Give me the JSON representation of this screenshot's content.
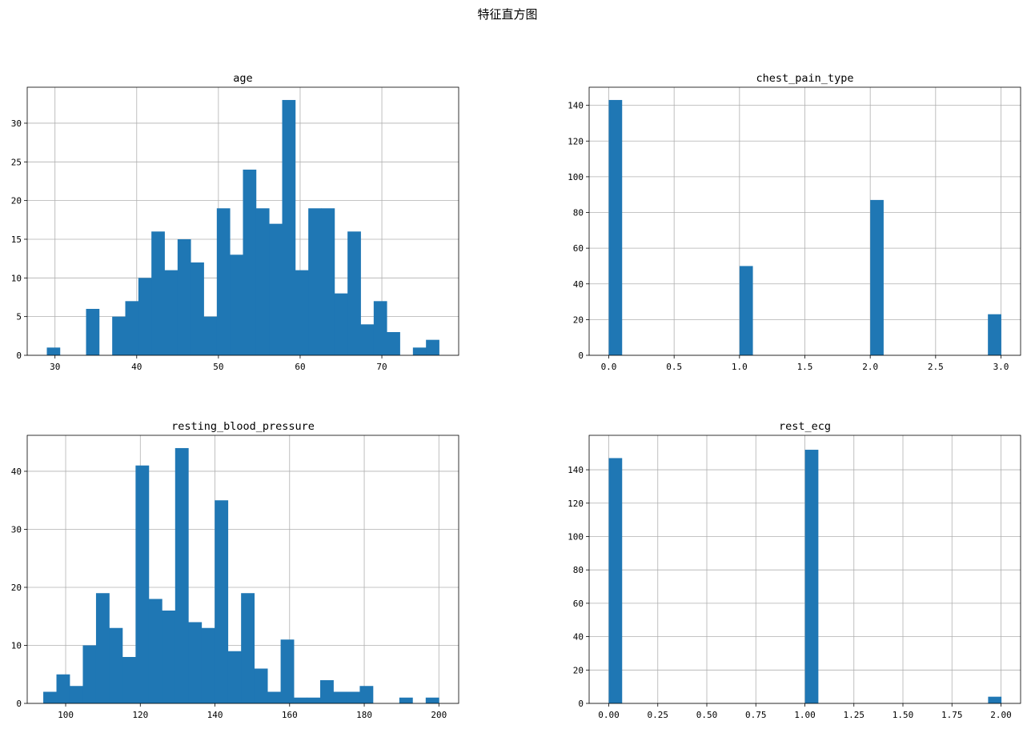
{
  "figure": {
    "title": "特征直方图"
  },
  "chart_data": [
    {
      "type": "bar",
      "title": "age",
      "xlim": [
        26.6,
        79.4
      ],
      "ylim": [
        0,
        34.65
      ],
      "xticks": [
        30,
        40,
        50,
        60,
        70
      ],
      "xtick_labels": [
        "30",
        "40",
        "50",
        "60",
        "70"
      ],
      "yticks": [
        0,
        5,
        10,
        15,
        20,
        25,
        30
      ],
      "ytick_labels": [
        "0",
        "5",
        "10",
        "15",
        "20",
        "25",
        "30"
      ],
      "grid": true,
      "bin_start": 29,
      "bin_width": 1.6,
      "values": [
        1,
        0,
        0,
        6,
        0,
        5,
        7,
        10,
        16,
        11,
        15,
        12,
        5,
        19,
        13,
        24,
        19,
        17,
        33,
        11,
        19,
        19,
        8,
        16,
        4,
        7,
        3,
        0,
        1,
        2
      ]
    },
    {
      "type": "bar",
      "title": "chest_pain_type",
      "xlim": [
        -0.15,
        3.15
      ],
      "ylim": [
        0,
        150.15
      ],
      "xticks": [
        0,
        0.5,
        1,
        1.5,
        2,
        2.5,
        3
      ],
      "xtick_labels": [
        "0.0",
        "0.5",
        "1.0",
        "1.5",
        "2.0",
        "2.5",
        "3.0"
      ],
      "yticks": [
        0,
        20,
        40,
        60,
        80,
        100,
        120,
        140
      ],
      "ytick_labels": [
        "0",
        "20",
        "40",
        "60",
        "80",
        "100",
        "120",
        "140"
      ],
      "grid": true,
      "bin_start": 0,
      "bin_width": 0.1,
      "values": [
        143,
        0,
        0,
        0,
        0,
        0,
        0,
        0,
        0,
        0,
        50,
        0,
        0,
        0,
        0,
        0,
        0,
        0,
        0,
        0,
        87,
        0,
        0,
        0,
        0,
        0,
        0,
        0,
        0,
        23
      ]
    },
    {
      "type": "bar",
      "title": "resting_blood_pressure",
      "xlim": [
        89.7,
        205.3
      ],
      "ylim": [
        0,
        46.2
      ],
      "xticks": [
        100,
        120,
        140,
        160,
        180,
        200
      ],
      "xtick_labels": [
        "100",
        "120",
        "140",
        "160",
        "180",
        "200"
      ],
      "yticks": [
        0,
        10,
        20,
        30,
        40
      ],
      "ytick_labels": [
        "0",
        "10",
        "20",
        "30",
        "40"
      ],
      "grid": true,
      "bin_start": 94,
      "bin_width": 3.5333,
      "values": [
        2,
        5,
        3,
        10,
        19,
        13,
        8,
        41,
        18,
        16,
        44,
        14,
        13,
        35,
        9,
        19,
        6,
        2,
        11,
        1,
        1,
        4,
        2,
        2,
        3,
        0,
        0,
        1,
        0,
        1
      ]
    },
    {
      "type": "bar",
      "title": "rest_ecg",
      "xlim": [
        -0.1,
        2.1
      ],
      "ylim": [
        0,
        160.65
      ],
      "xticks": [
        0,
        0.25,
        0.5,
        0.75,
        1,
        1.25,
        1.5,
        1.75,
        2
      ],
      "xtick_labels": [
        "0.00",
        "0.25",
        "0.50",
        "0.75",
        "1.00",
        "1.25",
        "1.50",
        "1.75",
        "2.00"
      ],
      "yticks": [
        0,
        20,
        40,
        60,
        80,
        100,
        120,
        140
      ],
      "ytick_labels": [
        "0",
        "20",
        "40",
        "60",
        "80",
        "100",
        "120",
        "140"
      ],
      "grid": true,
      "bin_start": 0,
      "bin_width": 0.0667,
      "values": [
        147,
        0,
        0,
        0,
        0,
        0,
        0,
        0,
        0,
        0,
        0,
        0,
        0,
        0,
        0,
        152,
        0,
        0,
        0,
        0,
        0,
        0,
        0,
        0,
        0,
        0,
        0,
        0,
        0,
        4
      ]
    }
  ]
}
